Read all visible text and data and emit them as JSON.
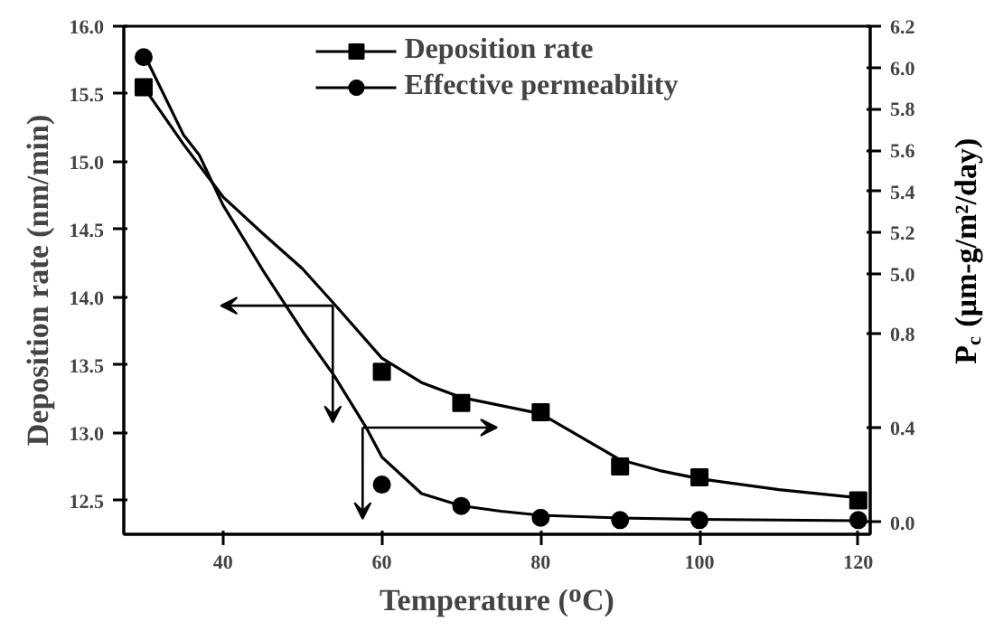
{
  "chart_data": {
    "type": "scatter",
    "xlabel": "Temperature (ᴼC)",
    "ylabel": "Deposition rate (nm/min)",
    "y2label": "P$_{c}$ (μm-g/m²/day)",
    "x": [
      30,
      60,
      70,
      80,
      90,
      100,
      120
    ],
    "series": [
      {
        "name": "Deposition rate",
        "color": "#000000",
        "marker": "square",
        "values": [
          15.55,
          13.45,
          13.22,
          13.15,
          12.75,
          12.67,
          12.5
        ]
      },
      {
        "type": "line",
        "color": "#000000",
        "x": [
          30,
          35,
          40,
          45,
          50,
          54,
          60,
          65,
          70,
          75,
          80,
          85,
          90,
          95,
          100,
          110,
          120
        ],
        "values": [
          15.55,
          15.13,
          14.74,
          14.47,
          14.21,
          13.95,
          13.55,
          13.37,
          13.26,
          13.2,
          13.14,
          12.97,
          12.8,
          12.72,
          12.66,
          12.58,
          12.52
        ]
      },
      {
        "name": "Effective permeability",
        "color": "#000000",
        "marker": "circle",
        "axis": "y2",
        "values": [
          null,
          0.16,
          0.07,
          0.02,
          0.01,
          0.01,
          0.01
        ]
      },
      {
        "color": "#000000",
        "marker": "circle",
        "axis": "y3",
        "x": [
          30
        ],
        "values": [
          6.05
        ]
      },
      {
        "type": "line",
        "color": "#000000",
        "x": [
          30,
          35,
          37,
          40,
          45,
          50,
          54,
          58,
          60,
          65,
          70,
          75,
          80,
          90,
          100,
          120
        ],
        "values": [
          15.8,
          15.2,
          15.05,
          14.68,
          14.2,
          13.75,
          13.42,
          13.04,
          12.82,
          12.55,
          12.46,
          12.42,
          12.39,
          12.37,
          12.36,
          12.35
        ]
      }
    ],
    "xlim": [
      27.5,
      121.5
    ],
    "xticks": [
      40,
      60,
      80,
      100,
      120
    ],
    "ylim": [
      12.25,
      16.0
    ],
    "yticks": [
      {
        "value": 12.5,
        "label": "12.5"
      },
      {
        "value": 13,
        "label": "13.0"
      },
      {
        "value": 13.5,
        "label": "13.5"
      },
      {
        "value": 14,
        "label": "14.0"
      },
      {
        "value": 14.5,
        "label": "14.5"
      },
      {
        "value": 15,
        "label": "15.0"
      },
      {
        "value": 15.5,
        "label": "15.5"
      },
      {
        "value": 16,
        "label": "16.0"
      }
    ],
    "y2lim": [
      -0.05,
      2.1
    ],
    "y2ticks": [
      {
        "value": 0,
        "label": "0.0"
      },
      0.4,
      0.8
    ],
    "y3lim": [
      3.74,
      6.2
    ],
    "y3ticks": [
      {
        "value": 5,
        "label": "5.0"
      },
      5.2,
      5.4,
      5.6,
      5.8,
      {
        "value": 6,
        "label": "6.0"
      },
      6.2
    ],
    "legend": "top",
    "grid": false
  }
}
